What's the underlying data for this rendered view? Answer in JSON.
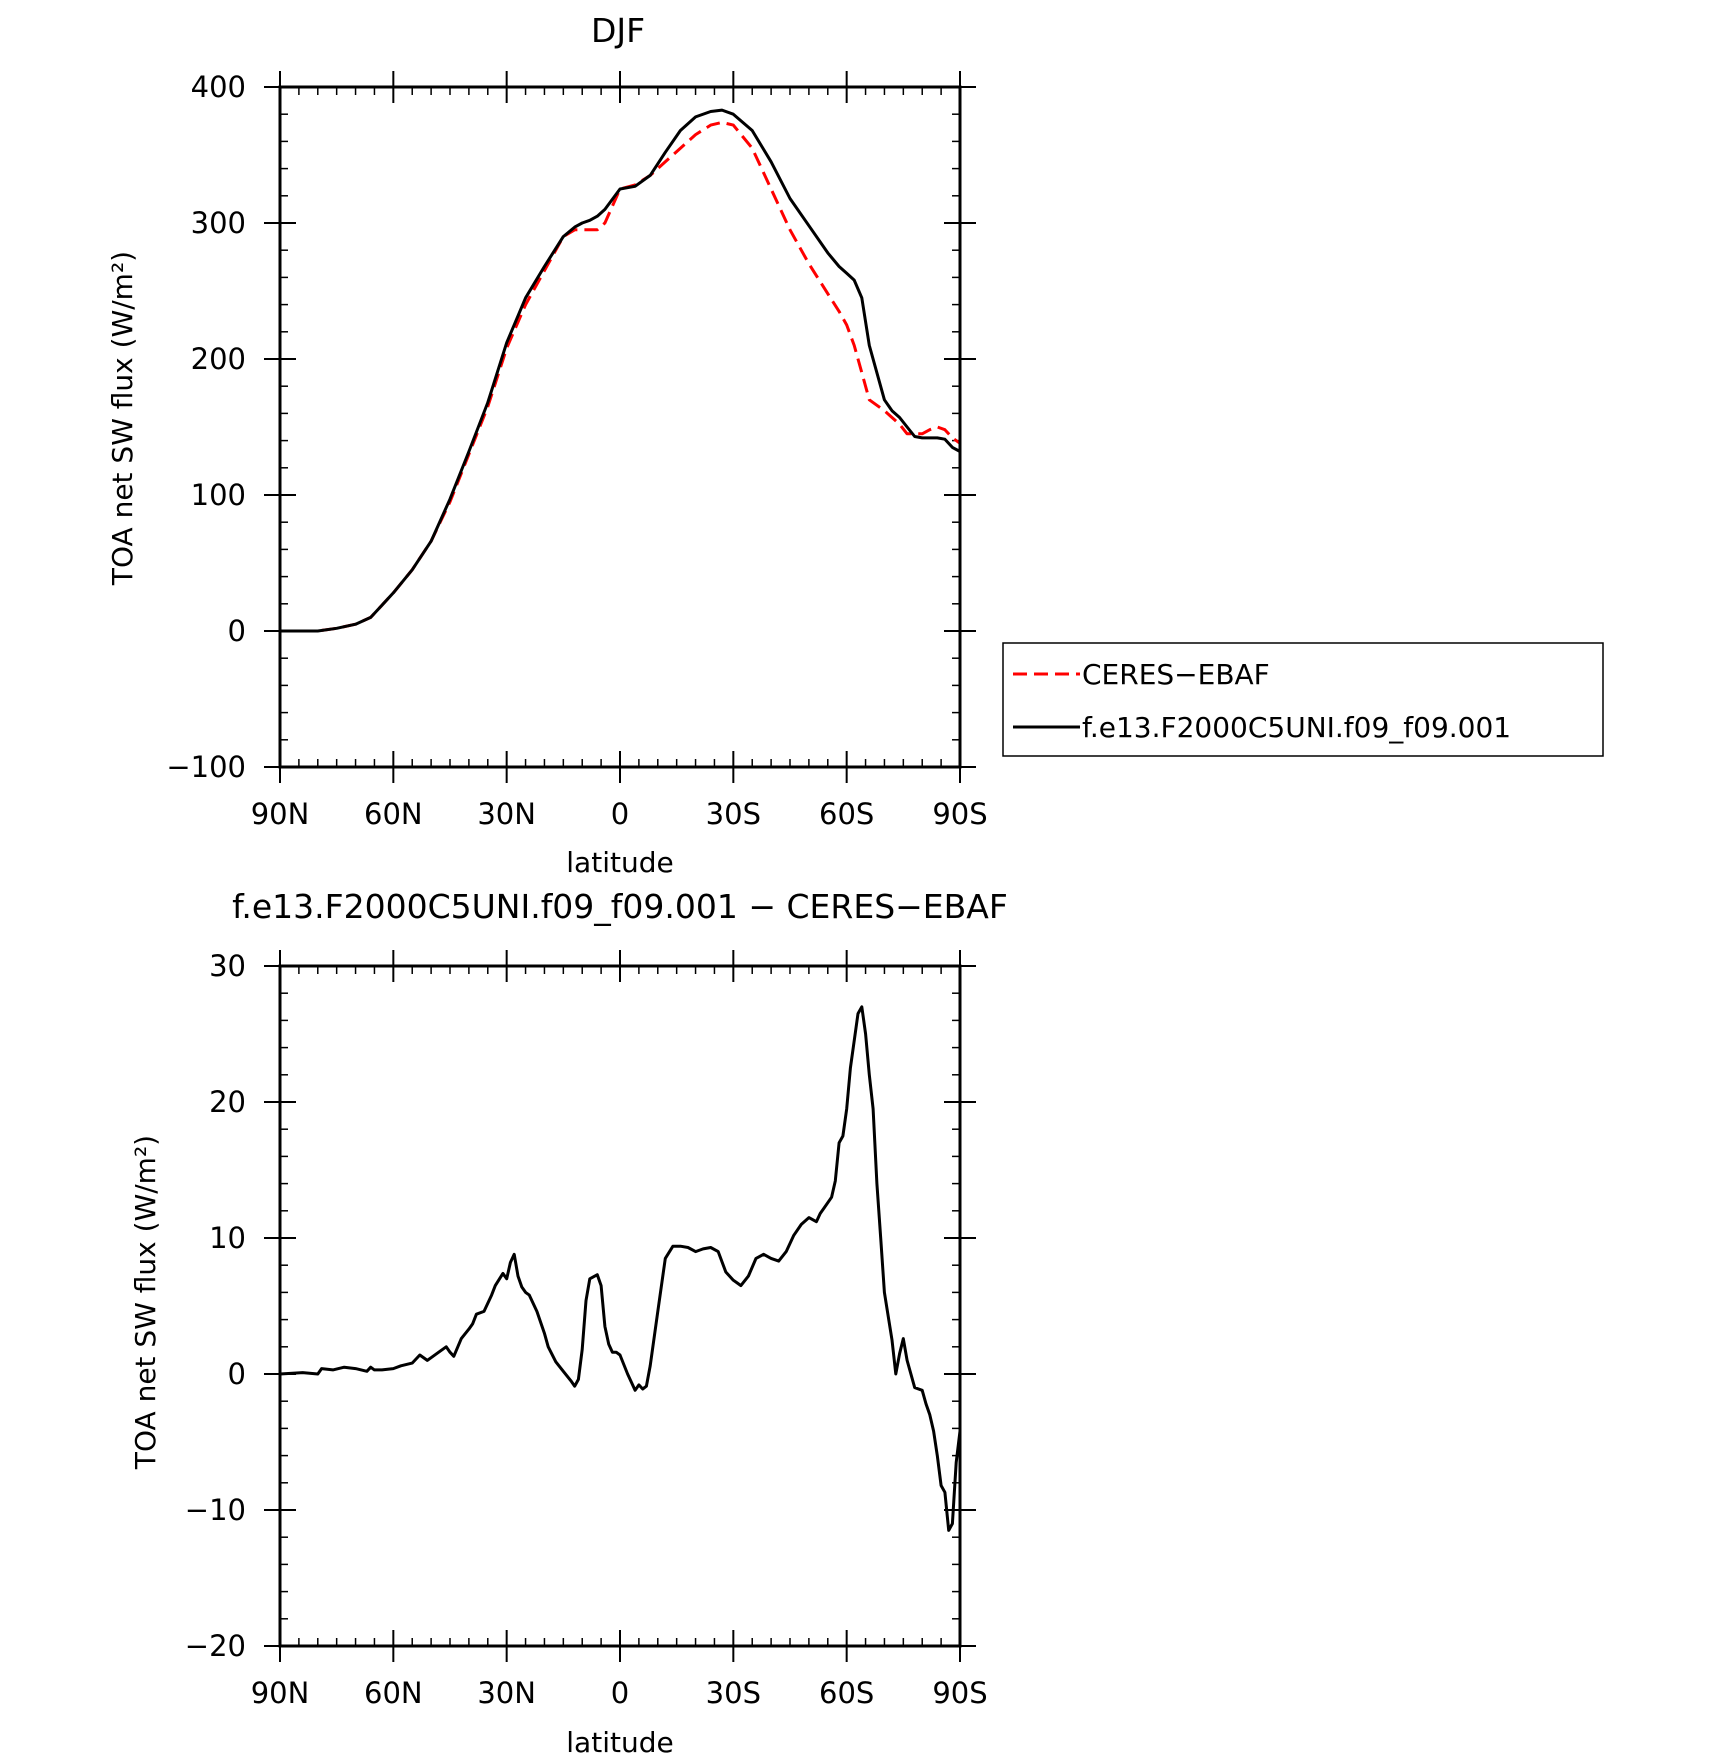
{
  "figure": {
    "background": "#ffffff",
    "legend_placement": "right of top panel"
  },
  "chart_data": [
    {
      "type": "line",
      "title": "DJF",
      "xlabel": "latitude",
      "ylabel": "TOA net SW flux (W/m²)",
      "xlim": [
        90,
        -90
      ],
      "ylim": [
        -100,
        400
      ],
      "x_ticks": [
        90,
        60,
        30,
        0,
        -30,
        -60,
        -90
      ],
      "x_tick_labels": [
        "90N",
        "60N",
        "30N",
        "0",
        "30S",
        "60S",
        "90S"
      ],
      "y_ticks": [
        -100,
        0,
        100,
        200,
        300,
        400
      ],
      "y_tick_labels": [
        "−100",
        "0",
        "100",
        "200",
        "300",
        "400"
      ],
      "grid": false,
      "legend": {
        "placement": "right",
        "entries": [
          "CERES−EBAF",
          "f.e13.F2000C5UNI.f09_f09.001"
        ]
      },
      "series": [
        {
          "name": "CERES−EBAF",
          "color": "#ff0000",
          "dash": "dashed",
          "x": [
            90,
            85,
            80,
            75,
            70,
            66,
            60,
            55,
            50,
            45,
            40,
            35,
            30,
            25,
            20,
            15,
            12,
            10,
            8,
            6,
            4,
            0,
            -4,
            -8,
            -12,
            -16,
            -20,
            -24,
            -27,
            -30,
            -35,
            -40,
            -45,
            -50,
            -55,
            -58,
            -60,
            -62,
            -64,
            -66,
            -70,
            -72,
            -74,
            -76,
            -78,
            -80,
            -82,
            -84,
            -86,
            -88,
            -90
          ],
          "y": [
            0,
            0,
            0,
            2,
            5,
            10,
            28,
            45,
            66,
            95,
            130,
            165,
            208,
            240,
            265,
            290,
            295,
            295,
            295,
            295,
            300,
            325,
            328,
            335,
            345,
            355,
            365,
            372,
            374,
            372,
            355,
            325,
            295,
            270,
            248,
            235,
            225,
            210,
            190,
            170,
            162,
            157,
            152,
            145,
            145,
            145,
            148,
            150,
            148,
            142,
            138
          ]
        },
        {
          "name": "f.e13.F2000C5UNI.f09_f09.001",
          "color": "#000000",
          "dash": "solid",
          "x": [
            90,
            85,
            80,
            75,
            70,
            66,
            60,
            55,
            50,
            45,
            40,
            35,
            30,
            25,
            20,
            15,
            12,
            10,
            8,
            6,
            4,
            0,
            -4,
            -8,
            -12,
            -16,
            -20,
            -24,
            -27,
            -30,
            -35,
            -40,
            -45,
            -50,
            -55,
            -58,
            -60,
            -62,
            -64,
            -66,
            -70,
            -72,
            -74,
            -76,
            -78,
            -80,
            -82,
            -84,
            -86,
            -88,
            -90
          ],
          "y": [
            0,
            0,
            0,
            2,
            5,
            10,
            28,
            45,
            66,
            97,
            132,
            168,
            212,
            245,
            268,
            290,
            297,
            300,
            302,
            305,
            310,
            325,
            327,
            335,
            352,
            368,
            378,
            382,
            383,
            380,
            368,
            345,
            318,
            298,
            278,
            268,
            263,
            258,
            245,
            210,
            170,
            162,
            157,
            150,
            143,
            142,
            142,
            142,
            141,
            135,
            132
          ]
        }
      ]
    },
    {
      "type": "line",
      "title": "f.e13.F2000C5UNI.f09_f09.001  −  CERES−EBAF",
      "xlabel": "latitude",
      "ylabel": "TOA net SW flux (W/m²)",
      "xlim": [
        90,
        -90
      ],
      "ylim": [
        -20,
        30
      ],
      "x_ticks": [
        90,
        60,
        30,
        0,
        -30,
        -60,
        -90
      ],
      "x_tick_labels": [
        "90N",
        "60N",
        "30N",
        "0",
        "30S",
        "60S",
        "90S"
      ],
      "y_ticks": [
        -20,
        -10,
        0,
        10,
        20,
        30
      ],
      "y_tick_labels": [
        "−20",
        "−10",
        "0",
        "10",
        "20",
        "30"
      ],
      "grid": false,
      "series": [
        {
          "color": "#000000",
          "dash": "solid",
          "x": [
            90,
            84,
            80,
            79,
            76,
            73,
            70,
            67,
            66,
            65,
            63,
            60,
            58,
            55,
            53,
            51,
            50,
            48,
            46,
            45,
            44,
            42,
            40,
            39,
            38,
            36,
            34,
            33,
            31,
            30,
            29,
            28,
            27,
            26,
            25,
            24,
            22,
            20,
            19,
            17,
            15,
            13,
            12,
            11,
            10,
            9,
            8,
            6,
            5,
            4,
            3,
            2,
            1,
            0,
            -2,
            -4,
            -5,
            -6,
            -7,
            -8,
            -10,
            -12,
            -14,
            -16,
            -18,
            -20,
            -22,
            -24,
            -26,
            -28,
            -30,
            -31,
            -32,
            -34,
            -36,
            -38,
            -40,
            -42,
            -44,
            -46,
            -48,
            -50,
            -52,
            -53,
            -54,
            -56,
            -57,
            -58,
            -59,
            -60,
            -61,
            -62,
            -63,
            -64,
            -65,
            -66,
            -67,
            -68,
            -69,
            -70,
            -72,
            -73,
            -74,
            -75,
            -76,
            -78,
            -80,
            -81,
            -82,
            -83,
            -84,
            -85,
            -86,
            -87,
            -88,
            -89,
            -90
          ],
          "y": [
            0,
            0.1,
            0,
            0.4,
            0.3,
            0.5,
            0.4,
            0.2,
            0.5,
            0.3,
            0.3,
            0.4,
            0.6,
            0.8,
            1.4,
            1.0,
            1.2,
            1.6,
            2.0,
            1.6,
            1.3,
            2.6,
            3.3,
            3.7,
            4.4,
            4.6,
            5.8,
            6.5,
            7.4,
            7.0,
            8.2,
            8.8,
            7.2,
            6.4,
            6.0,
            5.8,
            4.6,
            3.0,
            2.0,
            0.9,
            0.2,
            -0.5,
            -0.9,
            -0.4,
            1.8,
            5.4,
            7.0,
            7.3,
            6.5,
            3.5,
            2.2,
            1.6,
            1.6,
            1.4,
            0.0,
            -1.2,
            -0.8,
            -1.1,
            -0.9,
            0.6,
            4.6,
            8.5,
            9.4,
            9.4,
            9.3,
            9.0,
            9.2,
            9.3,
            9.0,
            7.5,
            6.9,
            6.7,
            6.5,
            7.2,
            8.5,
            8.8,
            8.5,
            8.3,
            9.0,
            10.2,
            11.0,
            11.5,
            11.2,
            11.8,
            12.2,
            13.0,
            14.2,
            17.0,
            17.5,
            19.5,
            22.5,
            24.5,
            26.5,
            27.0,
            25.0,
            22.0,
            19.5,
            14.0,
            10.0,
            6.0,
            2.5,
            0.0,
            1.5,
            2.6,
            1.0,
            -1.0,
            -1.2,
            -2.2,
            -3.0,
            -4.2,
            -6.0,
            -8.2,
            -8.7,
            -11.5,
            -11.0,
            -6.5,
            -4.2
          ]
        }
      ]
    }
  ]
}
